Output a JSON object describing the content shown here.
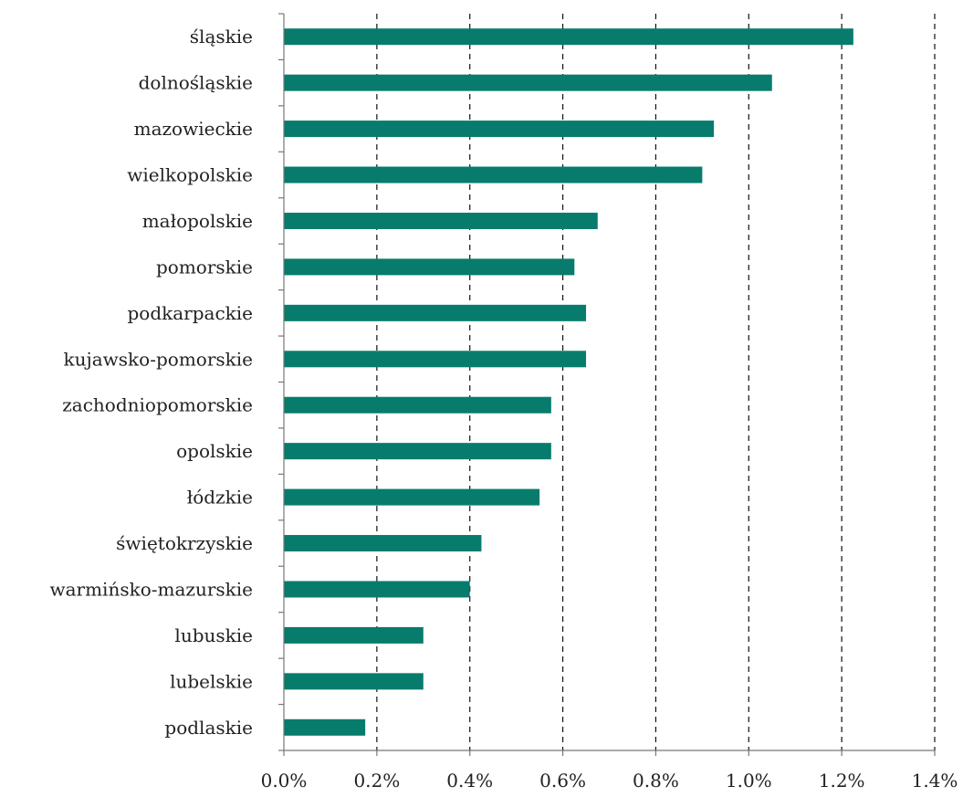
{
  "chart_data": {
    "type": "bar",
    "orientation": "horizontal",
    "categories": [
      "śląskie",
      "dolnośląskie",
      "mazowieckie",
      "wielkopolskie",
      "małopolskie",
      "pomorskie",
      "podkarpackie",
      "kujawsko-pomorskie",
      "zachodniopomorskie",
      "opolskie",
      "łódzkie",
      "świętokrzyskie",
      "warmińsko-mazurskie",
      "lubuskie",
      "lubelskie",
      "podlaskie"
    ],
    "values": [
      1.225,
      1.05,
      0.925,
      0.9,
      0.675,
      0.625,
      0.65,
      0.65,
      0.575,
      0.575,
      0.55,
      0.425,
      0.4,
      0.3,
      0.3,
      0.175
    ],
    "value_unit": "%",
    "xlim": [
      0,
      1.4
    ],
    "x_ticks": [
      0,
      0.2,
      0.4,
      0.6,
      0.8,
      1.0,
      1.2,
      1.4
    ],
    "x_tick_labels": [
      "0.0%",
      "0.2%",
      "0.4%",
      "0.6%",
      "0.8%",
      "1.0%",
      "1.2%",
      "1.4%"
    ],
    "grid": "vertical dashed",
    "legend": "none",
    "bar_color": "#077c6c",
    "title": "",
    "xlabel": "",
    "ylabel": ""
  }
}
